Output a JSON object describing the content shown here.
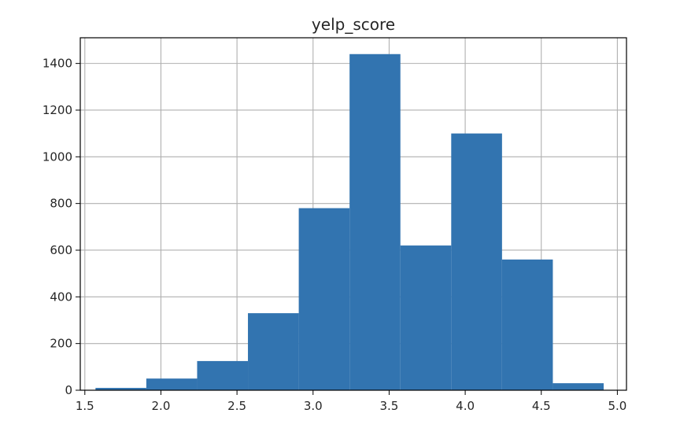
{
  "chart_data": {
    "type": "bar",
    "title": "yelp_score",
    "xlabel": "",
    "ylabel": "",
    "xlim": [
      1.47,
      5.06
    ],
    "ylim": [
      0,
      1510
    ],
    "grid": true,
    "x_ticks": [
      1.5,
      2.0,
      2.5,
      3.0,
      3.5,
      4.0,
      4.5,
      5.0
    ],
    "x_tick_labels": [
      "1.5",
      "2.0",
      "2.5",
      "3.0",
      "3.5",
      "4.0",
      "4.5",
      "5.0"
    ],
    "y_ticks": [
      0,
      200,
      400,
      600,
      800,
      1000,
      1200,
      1400
    ],
    "y_tick_labels": [
      "0",
      "200",
      "400",
      "600",
      "800",
      "1000",
      "1200",
      "1400"
    ],
    "bar_color": "#3274b0",
    "grid_color": "#b0b0b0",
    "bins": [
      {
        "x0": 1.57,
        "x1": 1.904,
        "value": 10
      },
      {
        "x0": 1.904,
        "x1": 2.238,
        "value": 50
      },
      {
        "x0": 2.238,
        "x1": 2.572,
        "value": 125
      },
      {
        "x0": 2.572,
        "x1": 2.906,
        "value": 330
      },
      {
        "x0": 2.906,
        "x1": 3.24,
        "value": 780
      },
      {
        "x0": 3.24,
        "x1": 3.574,
        "value": 1440
      },
      {
        "x0": 3.574,
        "x1": 3.908,
        "value": 620
      },
      {
        "x0": 3.908,
        "x1": 4.242,
        "value": 1100
      },
      {
        "x0": 4.242,
        "x1": 4.576,
        "value": 560
      },
      {
        "x0": 4.576,
        "x1": 4.91,
        "value": 30
      }
    ]
  }
}
